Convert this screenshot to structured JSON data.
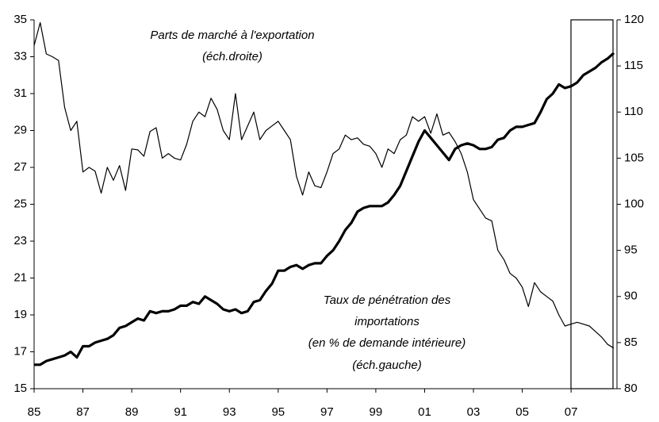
{
  "chart_data": {
    "type": "line",
    "categories": [
      "85",
      null,
      null,
      null,
      null,
      null,
      null,
      null,
      "87",
      null,
      null,
      null,
      null,
      null,
      null,
      null,
      "89",
      null,
      null,
      null,
      null,
      null,
      null,
      null,
      "91",
      null,
      null,
      null,
      null,
      null,
      null,
      null,
      "93",
      null,
      null,
      null,
      null,
      null,
      null,
      null,
      "95",
      null,
      null,
      null,
      null,
      null,
      null,
      null,
      "97",
      null,
      null,
      null,
      null,
      null,
      null,
      null,
      "99",
      null,
      null,
      null,
      null,
      null,
      null,
      null,
      "01",
      null,
      null,
      null,
      null,
      null,
      null,
      null,
      "03",
      null,
      null,
      null,
      null,
      null,
      null,
      null,
      "05",
      null,
      null,
      null,
      null,
      null,
      null,
      null,
      "07",
      null,
      null,
      null,
      null,
      null,
      null,
      null
    ],
    "ylim": [
      15,
      35
    ],
    "yticks": [
      15,
      17,
      19,
      21,
      23,
      25,
      27,
      29,
      31,
      33,
      35
    ],
    "y2lim": [
      80,
      120
    ],
    "y2ticks": [
      80,
      85,
      90,
      95,
      100,
      105,
      110,
      115,
      120
    ],
    "series": [
      {
        "color": "#000000",
        "width": 3.2,
        "values": [
          16.3,
          16.3,
          16.5,
          16.6,
          16.7,
          16.8,
          17.0,
          16.7,
          17.3,
          17.3,
          17.5,
          17.6,
          17.7,
          17.9,
          18.3,
          18.4,
          18.6,
          18.8,
          18.7,
          19.2,
          19.1,
          19.2,
          19.2,
          19.3,
          19.5,
          19.5,
          19.7,
          19.6,
          20.0,
          19.8,
          19.6,
          19.3,
          19.2,
          19.3,
          19.1,
          19.2,
          19.7,
          19.8,
          20.3,
          20.7,
          21.4,
          21.4,
          21.6,
          21.7,
          21.5,
          21.7,
          21.8,
          21.8,
          22.2,
          22.5,
          23.0,
          23.6,
          24.0,
          24.6,
          24.8,
          24.9,
          24.9,
          24.9,
          25.1,
          25.5,
          26.0,
          26.8,
          27.6,
          28.4,
          29.0,
          28.6,
          28.2,
          27.8,
          27.4,
          28.0,
          28.2,
          28.3,
          28.2,
          28.0,
          28.0,
          28.1,
          28.5,
          28.6,
          29.0,
          29.2,
          29.2,
          29.3,
          29.4,
          30.0,
          30.7,
          31.0,
          31.5,
          31.3,
          31.4,
          31.6,
          32.0,
          32.2,
          32.4,
          32.7,
          32.9,
          33.2
        ]
      },
      {
        "color": "#000000",
        "width": 1.2,
        "axis": "y2",
        "values": [
          117.2,
          119.7,
          116.3,
          116.0,
          115.6,
          110.5,
          108.0,
          109.0,
          103.5,
          104.0,
          103.6,
          101.2,
          104.0,
          102.6,
          104.2,
          101.5,
          106.0,
          105.9,
          105.2,
          107.9,
          108.3,
          105.0,
          105.5,
          105.0,
          104.8,
          106.5,
          109.0,
          110.0,
          109.5,
          111.5,
          110.3,
          108.0,
          107.0,
          112.0,
          107.0,
          108.5,
          110.0,
          107.0,
          108.0,
          108.5,
          109.0,
          108.0,
          107.0,
          103.0,
          101.0,
          103.5,
          102.0,
          101.8,
          103.5,
          105.5,
          106.0,
          107.5,
          107.0,
          107.2,
          106.5,
          106.3,
          105.5,
          104.0,
          106.0,
          105.5,
          107.0,
          107.5,
          109.5,
          109.0,
          109.5,
          107.7,
          109.8,
          107.5,
          107.8,
          106.8,
          105.5,
          103.5,
          100.5,
          99.5,
          98.5,
          98.2,
          95.0,
          94.0,
          92.5,
          92.0,
          91.0,
          88.9,
          91.5,
          90.5,
          90.0,
          89.5,
          88.0,
          86.8,
          87.0,
          87.2,
          87.0,
          86.8,
          86.2,
          85.6,
          84.8,
          84.4
        ]
      }
    ],
    "annotations": [
      {
        "lines": [
          "Parts de marché à l'exportation",
          "(éch.droite)"
        ]
      },
      {
        "lines": [
          "Taux de pénétration des",
          "importations",
          "(en % de demande intérieure)",
          "(éch.gauche)"
        ]
      }
    ]
  }
}
